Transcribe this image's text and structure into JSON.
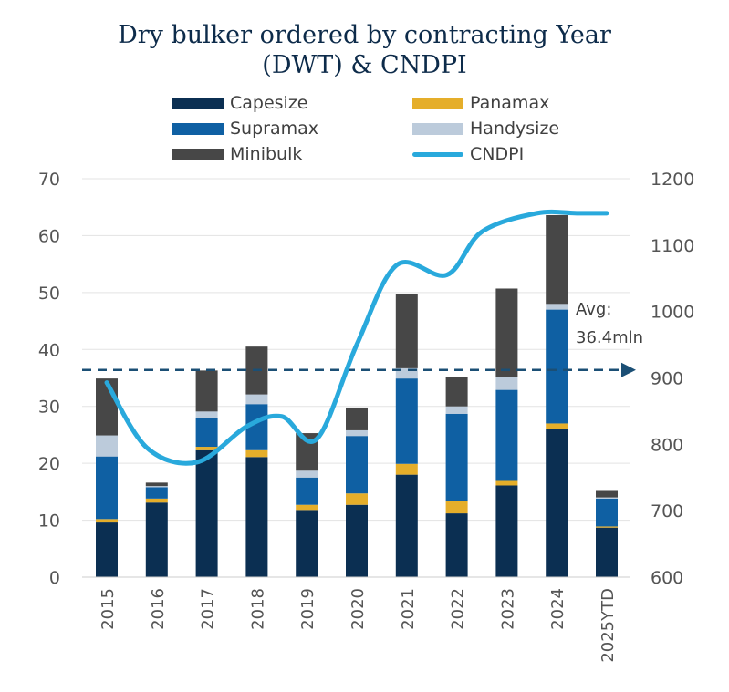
{
  "chart_data": {
    "type": "bar",
    "title_line1": "Dry bulker ordered by contracting Year",
    "title_line2": "(DWT) & CNDPI",
    "categories": [
      "2015",
      "2016",
      "2017",
      "2018",
      "2019",
      "2020",
      "2021",
      "2022",
      "2023",
      "2024",
      "2025YTD"
    ],
    "stacked": true,
    "series": [
      {
        "name": "Capesize",
        "color": "#0b2f52",
        "values": [
          9.6,
          13.1,
          22.3,
          21.1,
          11.8,
          12.7,
          18.0,
          11.2,
          16.1,
          26.0,
          8.7
        ]
      },
      {
        "name": "Panamax",
        "color": "#e5ae2a",
        "values": [
          0.6,
          0.7,
          0.6,
          1.2,
          0.9,
          2.0,
          1.9,
          2.2,
          0.8,
          1.0,
          0.2
        ]
      },
      {
        "name": "Supramax",
        "color": "#0f60a3",
        "values": [
          11.0,
          2.0,
          5.0,
          8.1,
          4.8,
          10.1,
          15.0,
          15.3,
          16.0,
          20.0,
          4.9
        ]
      },
      {
        "name": "Handysize",
        "color": "#bccbdb",
        "values": [
          3.7,
          0.2,
          1.2,
          1.7,
          1.2,
          1.0,
          1.8,
          1.3,
          2.3,
          1.0,
          0.2
        ]
      },
      {
        "name": "Minibulk",
        "color": "#474747",
        "values": [
          10.0,
          0.6,
          7.2,
          8.4,
          6.6,
          4.0,
          13.0,
          5.1,
          15.5,
          15.6,
          1.3
        ]
      }
    ],
    "line": {
      "name": "CNDPI",
      "color": "#29a9dc",
      "axis": "right",
      "x_fraction": [
        0.0,
        0.8,
        1.8,
        2.8,
        3.5,
        4.2,
        5.0,
        5.8,
        6.8,
        7.5,
        8.6,
        9.4,
        10.0
      ],
      "values": [
        893,
        795,
        773,
        827,
        842,
        808,
        950,
        1070,
        1055,
        1120,
        1148,
        1148,
        1148
      ]
    },
    "y_left": {
      "min": 0,
      "max": 70,
      "ticks": [
        "0",
        "10",
        "20",
        "30",
        "40",
        "50",
        "60",
        "70"
      ]
    },
    "y_right": {
      "min": 600,
      "max": 1200,
      "ticks": [
        "600",
        "700",
        "800",
        "900",
        "1000",
        "1100",
        "1200"
      ]
    },
    "average": {
      "value": 36.4,
      "label_line1": "Avg:",
      "label_line2": "36.4mln",
      "color": "#1b4f75"
    },
    "legend_placement": "top",
    "grid": true
  }
}
